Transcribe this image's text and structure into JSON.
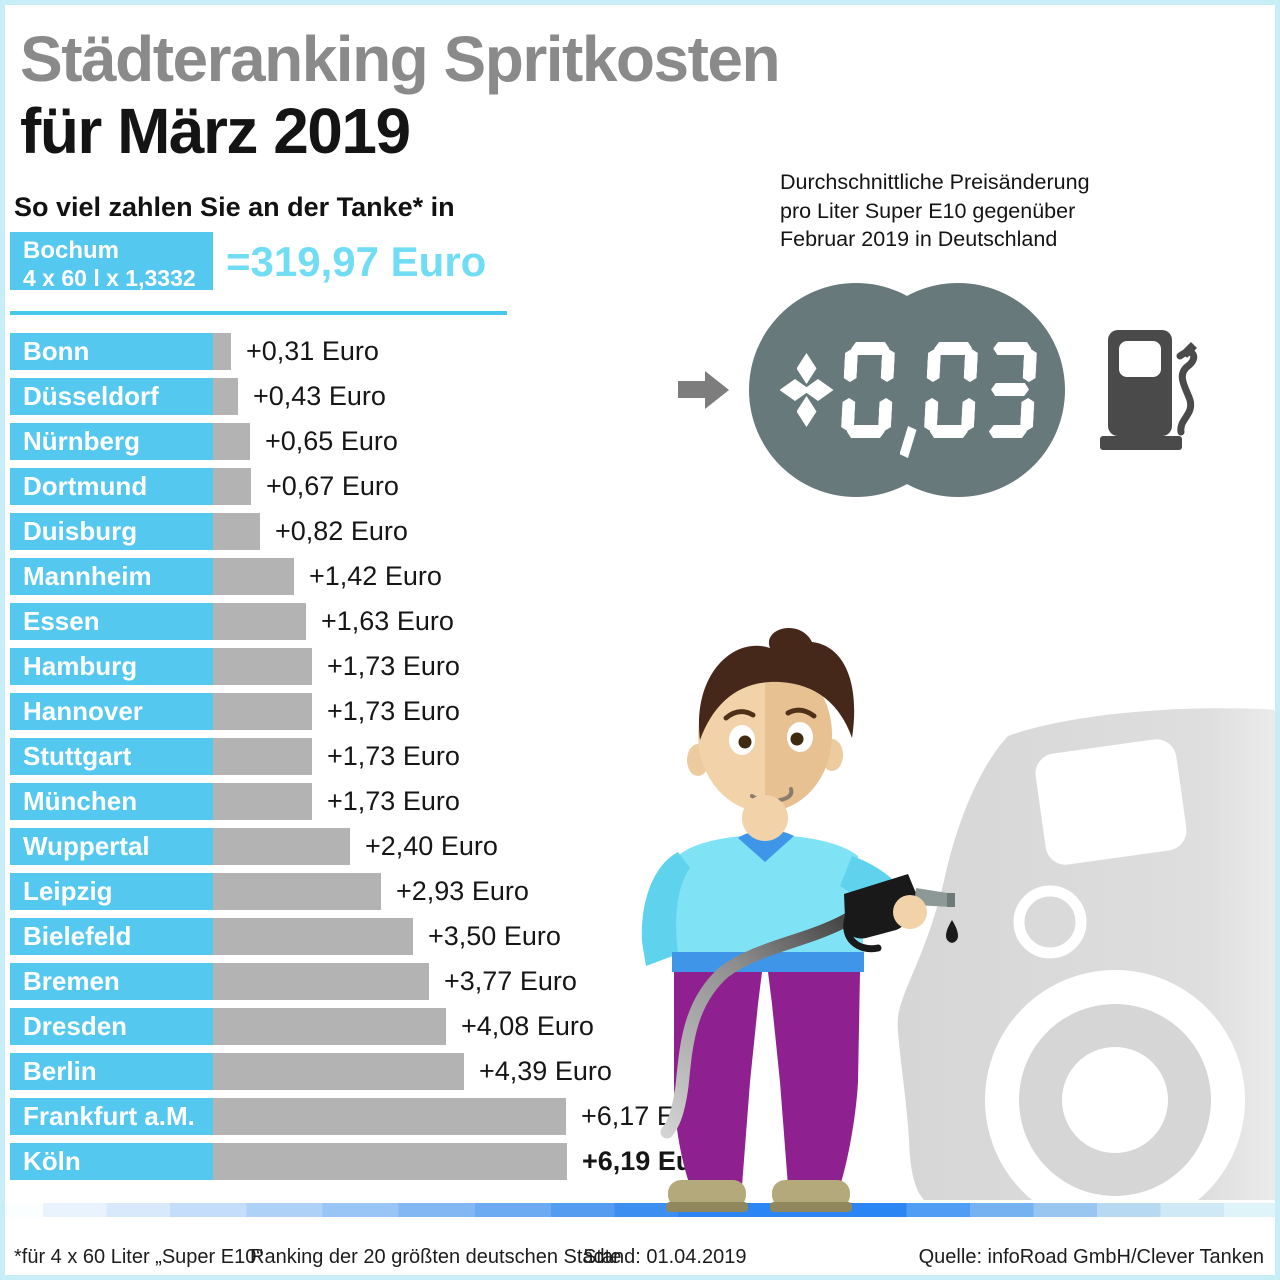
{
  "header": {
    "title_line1": "Städteranking Spritkosten",
    "title_line2": "für März 2019",
    "subtitle": "So viel zahlen Sie an der Tanke* in"
  },
  "baseline": {
    "city": "Bochum",
    "formula": "4 x 60 l x 1,3332 €",
    "total": "=319,97 Euro"
  },
  "chart_data": {
    "type": "bar",
    "title": "Städteranking Spritkosten für März 2019",
    "unit": "Euro",
    "baseline_city": "Bochum",
    "baseline_formula": "4 x 60 l x 1,3332 €",
    "baseline_total_label": "=319,97 Euro",
    "baseline_total_value": 319.97,
    "categories": [
      "Bonn",
      "Düsseldorf",
      "Nürnberg",
      "Dortmund",
      "Duisburg",
      "Mannheim",
      "Essen",
      "Hamburg",
      "Hannover",
      "Stuttgart",
      "München",
      "Wuppertal",
      "Leipzig",
      "Bielefeld",
      "Bremen",
      "Dresden",
      "Berlin",
      "Frankfurt a.M.",
      "Köln"
    ],
    "values": [
      0.31,
      0.43,
      0.65,
      0.67,
      0.82,
      1.42,
      1.63,
      1.73,
      1.73,
      1.73,
      1.73,
      2.4,
      2.93,
      3.5,
      3.77,
      4.08,
      4.39,
      6.17,
      6.19
    ],
    "value_labels": [
      "+0,31 Euro",
      "+0,43 Euro",
      "+0,65 Euro",
      "+0,67 Euro",
      "+0,82 Euro",
      "+1,42 Euro",
      "+1,63 Euro",
      "+1,73 Euro",
      "+1,73 Euro",
      "+1,73 Euro",
      "+1,73 Euro",
      "+2,40 Euro",
      "+2,93 Euro",
      "+3,50 Euro",
      "+3,77 Euro",
      "+4,08 Euro",
      "+4,39 Euro",
      "+6,17 Euro",
      "+6,19 Euro"
    ],
    "emphasized_category": "Köln",
    "colors": {
      "label_bg": "#54c8ef",
      "bar": "#b3b3b3",
      "title_gray": "#8a8a8a",
      "result_cyan": "#70ddf4"
    }
  },
  "price_change": {
    "line1": "Durchschnittliche Preisänderung",
    "line2": "pro Liter Super E10 gegenüber",
    "line3": "Februar 2019 in Deutschland",
    "display_value": "+0,03",
    "badge_color": "#68797c"
  },
  "footer": {
    "note": "*für 4 x 60 Liter „Super E10“",
    "ranking": "Ranking der 20 größten deutschen Städte",
    "stand": "Stand: 01.04.2019",
    "source": "Quelle: infoRoad GmbH/Clever Tanken"
  }
}
